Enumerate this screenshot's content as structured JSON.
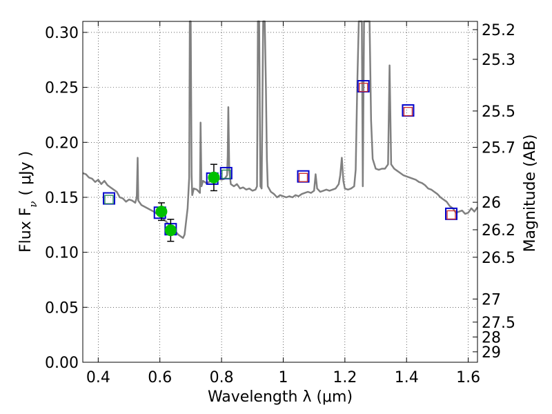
{
  "chart_data": {
    "type": "scatter",
    "xlabel": "Wavelength  λ (μm)",
    "ylabel_left": "Flux  F",
    "ylabel_left_sub": "ν",
    "ylabel_left_unit": "( μJy )",
    "ylabel_right": "Magnitude (AB)",
    "xlim": [
      0.35,
      1.63
    ],
    "ylim": [
      0.0,
      0.31
    ],
    "grid": true,
    "x_ticks": [
      0.4,
      0.6,
      0.8,
      1.0,
      1.2,
      1.4,
      1.6
    ],
    "x_tick_labels": [
      "0.4",
      "0.6",
      "0.8",
      "1",
      "1.2",
      "1.4",
      "1.6"
    ],
    "y_ticks": [
      0.0,
      0.05,
      0.1,
      0.15,
      0.2,
      0.25,
      0.3
    ],
    "y_tick_labels": [
      "0.00",
      "0.05",
      "0.10",
      "0.15",
      "0.20",
      "0.25",
      "0.30"
    ],
    "right_ticks": [
      {
        "flux": 0.3025,
        "label": "25.2"
      },
      {
        "flux": 0.2755,
        "label": "25.3"
      },
      {
        "flux": 0.2285,
        "label": "25.5"
      },
      {
        "flux": 0.1955,
        "label": "25.7"
      },
      {
        "flux": 0.1455,
        "label": "26"
      },
      {
        "flux": 0.1205,
        "label": "26.2"
      },
      {
        "flux": 0.0955,
        "label": "26.5"
      },
      {
        "flux": 0.0575,
        "label": "27"
      },
      {
        "flux": 0.0365,
        "label": "27.5"
      },
      {
        "flux": 0.023,
        "label": "28"
      },
      {
        "flux": 0.0095,
        "label": "29"
      }
    ],
    "series": [
      {
        "kind": "template_spectrum",
        "color": "#808080",
        "points": [
          [
            0.35,
            0.172
          ],
          [
            0.36,
            0.171
          ],
          [
            0.37,
            0.168
          ],
          [
            0.38,
            0.167
          ],
          [
            0.39,
            0.164
          ],
          [
            0.4,
            0.166
          ],
          [
            0.41,
            0.162
          ],
          [
            0.42,
            0.165
          ],
          [
            0.43,
            0.161
          ],
          [
            0.44,
            0.159
          ],
          [
            0.45,
            0.157
          ],
          [
            0.46,
            0.155
          ],
          [
            0.47,
            0.15
          ],
          [
            0.48,
            0.149
          ],
          [
            0.49,
            0.146
          ],
          [
            0.5,
            0.148
          ],
          [
            0.51,
            0.147
          ],
          [
            0.52,
            0.145
          ],
          [
            0.525,
            0.15
          ],
          [
            0.528,
            0.186
          ],
          [
            0.53,
            0.147
          ],
          [
            0.54,
            0.143
          ],
          [
            0.56,
            0.14
          ],
          [
            0.58,
            0.137
          ],
          [
            0.6,
            0.133
          ],
          [
            0.62,
            0.128
          ],
          [
            0.64,
            0.122
          ],
          [
            0.65,
            0.119
          ],
          [
            0.66,
            0.116
          ],
          [
            0.67,
            0.114
          ],
          [
            0.675,
            0.113
          ],
          [
            0.68,
            0.116
          ],
          [
            0.69,
            0.14
          ],
          [
            0.695,
            0.168
          ],
          [
            0.697,
            0.31
          ],
          [
            0.7,
            0.31
          ],
          [
            0.703,
            0.17
          ],
          [
            0.705,
            0.152
          ],
          [
            0.71,
            0.158
          ],
          [
            0.72,
            0.157
          ],
          [
            0.73,
            0.154
          ],
          [
            0.732,
            0.218
          ],
          [
            0.735,
            0.16
          ],
          [
            0.74,
            0.165
          ],
          [
            0.75,
            0.163
          ],
          [
            0.76,
            0.164
          ],
          [
            0.77,
            0.166
          ],
          [
            0.78,
            0.168
          ],
          [
            0.79,
            0.167
          ],
          [
            0.8,
            0.166
          ],
          [
            0.81,
            0.167
          ],
          [
            0.818,
            0.17
          ],
          [
            0.82,
            0.187
          ],
          [
            0.822,
            0.232
          ],
          [
            0.825,
            0.175
          ],
          [
            0.83,
            0.162
          ],
          [
            0.84,
            0.16
          ],
          [
            0.85,
            0.162
          ],
          [
            0.86,
            0.158
          ],
          [
            0.87,
            0.159
          ],
          [
            0.88,
            0.157
          ],
          [
            0.89,
            0.158
          ],
          [
            0.9,
            0.156
          ],
          [
            0.91,
            0.157
          ],
          [
            0.915,
            0.16
          ],
          [
            0.918,
            0.31
          ],
          [
            0.922,
            0.31
          ],
          [
            0.926,
            0.16
          ],
          [
            0.93,
            0.158
          ],
          [
            0.935,
            0.31
          ],
          [
            0.94,
            0.31
          ],
          [
            0.944,
            0.25
          ],
          [
            0.947,
            0.185
          ],
          [
            0.95,
            0.16
          ],
          [
            0.96,
            0.155
          ],
          [
            0.97,
            0.153
          ],
          [
            0.98,
            0.15
          ],
          [
            0.99,
            0.152
          ],
          [
            1.0,
            0.151
          ],
          [
            1.01,
            0.15
          ],
          [
            1.02,
            0.151
          ],
          [
            1.03,
            0.15
          ],
          [
            1.04,
            0.152
          ],
          [
            1.05,
            0.151
          ],
          [
            1.06,
            0.153
          ],
          [
            1.07,
            0.154
          ],
          [
            1.08,
            0.155
          ],
          [
            1.09,
            0.154
          ],
          [
            1.1,
            0.156
          ],
          [
            1.105,
            0.171
          ],
          [
            1.11,
            0.158
          ],
          [
            1.12,
            0.155
          ],
          [
            1.13,
            0.156
          ],
          [
            1.14,
            0.157
          ],
          [
            1.15,
            0.156
          ],
          [
            1.16,
            0.157
          ],
          [
            1.17,
            0.158
          ],
          [
            1.18,
            0.162
          ],
          [
            1.185,
            0.17
          ],
          [
            1.19,
            0.186
          ],
          [
            1.195,
            0.165
          ],
          [
            1.2,
            0.158
          ],
          [
            1.21,
            0.157
          ],
          [
            1.22,
            0.158
          ],
          [
            1.23,
            0.16
          ],
          [
            1.235,
            0.175
          ],
          [
            1.24,
            0.25
          ],
          [
            1.245,
            0.31
          ],
          [
            1.25,
            0.31
          ],
          [
            1.255,
            0.31
          ],
          [
            1.258,
            0.16
          ],
          [
            1.262,
            0.31
          ],
          [
            1.266,
            0.31
          ],
          [
            1.27,
            0.31
          ],
          [
            1.275,
            0.31
          ],
          [
            1.28,
            0.31
          ],
          [
            1.285,
            0.22
          ],
          [
            1.29,
            0.185
          ],
          [
            1.3,
            0.176
          ],
          [
            1.31,
            0.175
          ],
          [
            1.32,
            0.176
          ],
          [
            1.33,
            0.176
          ],
          [
            1.34,
            0.18
          ],
          [
            1.345,
            0.27
          ],
          [
            1.35,
            0.18
          ],
          [
            1.36,
            0.176
          ],
          [
            1.37,
            0.174
          ],
          [
            1.38,
            0.172
          ],
          [
            1.39,
            0.17
          ],
          [
            1.4,
            0.169
          ],
          [
            1.41,
            0.168
          ],
          [
            1.42,
            0.167
          ],
          [
            1.43,
            0.166
          ],
          [
            1.44,
            0.164
          ],
          [
            1.45,
            0.163
          ],
          [
            1.46,
            0.161
          ],
          [
            1.47,
            0.158
          ],
          [
            1.48,
            0.157
          ],
          [
            1.49,
            0.155
          ],
          [
            1.5,
            0.153
          ],
          [
            1.51,
            0.15
          ],
          [
            1.52,
            0.148
          ],
          [
            1.53,
            0.146
          ],
          [
            1.54,
            0.142
          ],
          [
            1.55,
            0.14
          ],
          [
            1.56,
            0.136
          ],
          [
            1.57,
            0.137
          ],
          [
            1.58,
            0.138
          ],
          [
            1.59,
            0.135
          ],
          [
            1.6,
            0.136
          ],
          [
            1.61,
            0.14
          ],
          [
            1.62,
            0.137
          ],
          [
            1.63,
            0.141
          ]
        ]
      },
      {
        "kind": "model_photometry",
        "marker": "open-square",
        "color": "#0000cc",
        "points": [
          [
            0.435,
            0.149
          ],
          [
            0.6,
            0.136
          ],
          [
            0.635,
            0.121
          ],
          [
            0.77,
            0.167
          ],
          [
            0.815,
            0.172
          ],
          [
            1.065,
            0.169
          ],
          [
            1.26,
            0.251
          ],
          [
            1.405,
            0.229
          ],
          [
            1.545,
            0.135
          ]
        ]
      },
      {
        "kind": "photometry",
        "marker": "small-square",
        "points": [
          {
            "x": 0.435,
            "y": 0.148,
            "color": "#2e8b57"
          },
          {
            "x": 0.815,
            "y": 0.171,
            "color": "#2e8b57"
          },
          {
            "x": 1.065,
            "y": 0.168,
            "color": "#cc3333"
          },
          {
            "x": 1.26,
            "y": 0.25,
            "color": "#cc3333"
          },
          {
            "x": 1.405,
            "y": 0.228,
            "color": "#cc3333"
          },
          {
            "x": 1.545,
            "y": 0.134,
            "color": "#cc3333"
          }
        ]
      },
      {
        "kind": "measurements",
        "marker": "filled-circle",
        "color": "#00c000",
        "points": [
          {
            "x": 0.605,
            "y": 0.137,
            "err": 0.008
          },
          {
            "x": 0.635,
            "y": 0.12,
            "err": 0.01
          },
          {
            "x": 0.775,
            "y": 0.168,
            "err": 0.012
          }
        ]
      }
    ]
  }
}
